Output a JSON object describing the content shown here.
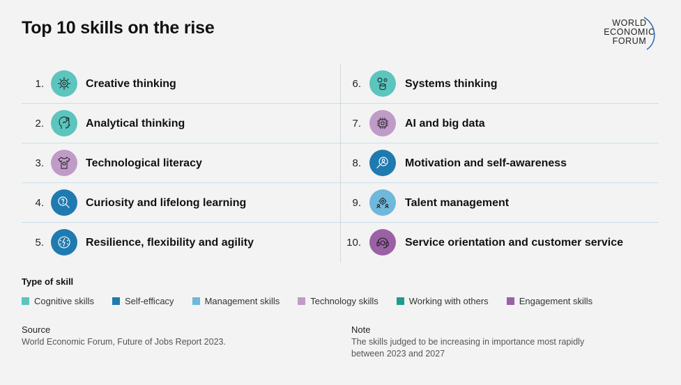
{
  "title": "Top 10 skills on the rise",
  "logo": {
    "line1": "WORLD",
    "line2": "ECONOMIC",
    "line3": "FORUM"
  },
  "colors": {
    "cognitive": "#5bc5be",
    "self_efficacy": "#1f7ab0",
    "management": "#6fb8dc",
    "technology": "#c09bc8",
    "working_with_others": "#1f9c8e",
    "engagement": "#9a62a5"
  },
  "skills": [
    {
      "rank": "1.",
      "label": "Creative thinking",
      "type": "cognitive",
      "color": "#5bc5be",
      "icon": "lightbulb-gear-icon"
    },
    {
      "rank": "2.",
      "label": "Analytical thinking",
      "type": "cognitive",
      "color": "#5bc5be",
      "icon": "head-chart-icon"
    },
    {
      "rank": "3.",
      "label": "Technological literacy",
      "type": "technology",
      "color": "#c09bc8",
      "icon": "shirt-gear-icon"
    },
    {
      "rank": "4.",
      "label": "Curiosity and lifelong learning",
      "type": "self_efficacy",
      "color": "#1f7ab0",
      "icon": "magnifier-question-icon"
    },
    {
      "rank": "5.",
      "label": "Resilience, flexibility and agility",
      "type": "self_efficacy",
      "color": "#1f7ab0",
      "icon": "head-lightning-icon"
    },
    {
      "rank": "6.",
      "label": "Systems thinking",
      "type": "cognitive",
      "color": "#5bc5be",
      "icon": "gears-database-icon"
    },
    {
      "rank": "7.",
      "label": "AI and big data",
      "type": "technology",
      "color": "#c09bc8",
      "icon": "chip-icon"
    },
    {
      "rank": "8.",
      "label": "Motivation and self-awareness",
      "type": "self_efficacy",
      "color": "#1f7ab0",
      "icon": "magnifier-person-icon"
    },
    {
      "rank": "9.",
      "label": "Talent management",
      "type": "management",
      "color": "#6fb8dc",
      "icon": "people-gear-icon"
    },
    {
      "rank": "10.",
      "label": "Service orientation and customer service",
      "type": "engagement",
      "color": "#9a62a5",
      "icon": "headset-icon"
    }
  ],
  "legend": {
    "title": "Type of skill",
    "items": [
      {
        "label": "Cognitive skills",
        "color": "#5bc5be"
      },
      {
        "label": "Self-efficacy",
        "color": "#1f7ab0"
      },
      {
        "label": "Management skills",
        "color": "#6fb8dc"
      },
      {
        "label": "Technology skills",
        "color": "#c09bc8"
      },
      {
        "label": "Working with others",
        "color": "#1f9c8e"
      },
      {
        "label": "Engagement skills",
        "color": "#9a62a5"
      }
    ]
  },
  "source": {
    "heading": "Source",
    "text": "World Economic Forum, Future of Jobs Report 2023."
  },
  "note": {
    "heading": "Note",
    "text": "The skills judged to be increasing in importance most rapidly between 2023 and 2027"
  }
}
